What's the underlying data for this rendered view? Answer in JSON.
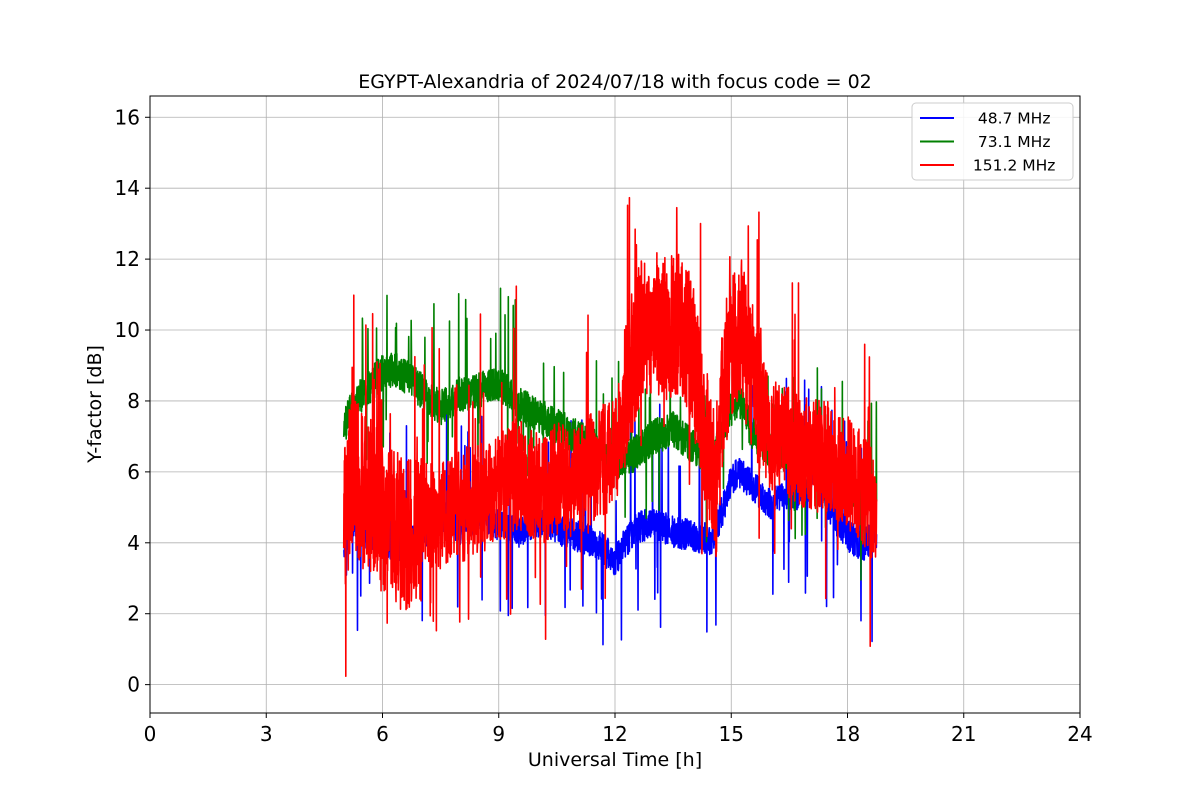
{
  "chart_data": {
    "type": "line",
    "title": "EGYPT-Alexandria of 2024/07/18 with focus code = 02",
    "xlabel": "Universal Time [h]",
    "ylabel": "Y-factor [dB]",
    "xlim": [
      0,
      24
    ],
    "ylim": [
      -0.8,
      16.6
    ],
    "xticks": [
      "0",
      "3",
      "6",
      "9",
      "12",
      "15",
      "18",
      "21",
      "24"
    ],
    "yticks": [
      "0",
      "2",
      "4",
      "6",
      "8",
      "10",
      "12",
      "14",
      "16"
    ],
    "grid": true,
    "legend_position": "top-right",
    "series": [
      {
        "name": "  48.7 MHz",
        "color": "#0000ff",
        "x": [
          5.0,
          5.2,
          5.5,
          5.8,
          6.0,
          6.3,
          6.6,
          7.0,
          7.5,
          8.0,
          8.5,
          9.0,
          9.5,
          10.0,
          10.5,
          11.0,
          11.5,
          12.0,
          12.5,
          13.0,
          13.5,
          14.0,
          14.5,
          14.8,
          15.0,
          15.2,
          15.5,
          16.0,
          16.5,
          17.0,
          17.2,
          17.5,
          18.0,
          18.4,
          18.75
        ],
        "values": [
          4.0,
          4.6,
          4.3,
          4.2,
          4.1,
          3.9,
          4.0,
          4.2,
          4.8,
          4.4,
          4.8,
          4.5,
          4.3,
          4.6,
          4.4,
          4.2,
          4.0,
          3.5,
          4.4,
          4.6,
          4.3,
          4.2,
          4.1,
          5.0,
          5.8,
          6.0,
          5.7,
          5.1,
          5.3,
          5.5,
          6.5,
          5.0,
          4.2,
          3.9,
          4.3
        ]
      },
      {
        "name": "  73.1 MHz",
        "color": "#008000",
        "x": [
          5.0,
          5.2,
          5.5,
          5.8,
          6.0,
          6.3,
          6.6,
          7.0,
          7.5,
          8.0,
          8.5,
          9.0,
          9.5,
          10.0,
          10.5,
          11.0,
          11.5,
          12.0,
          12.5,
          13.0,
          13.5,
          14.0,
          14.5,
          14.8,
          15.0,
          15.2,
          15.5,
          16.0,
          16.5,
          17.0,
          17.5,
          18.0,
          18.4,
          18.75
        ],
        "values": [
          7.2,
          7.8,
          8.2,
          8.6,
          8.8,
          8.9,
          8.7,
          8.3,
          7.8,
          8.2,
          8.3,
          8.5,
          7.9,
          7.6,
          7.3,
          7.0,
          6.7,
          6.3,
          6.5,
          7.0,
          7.2,
          6.7,
          6.3,
          7.2,
          7.8,
          8.1,
          7.2,
          6.6,
          6.5,
          6.6,
          6.2,
          5.6,
          5.2,
          5.5
        ]
      },
      {
        "name": " 151.2 MHz",
        "color": "#ff0000",
        "x": [
          5.0,
          5.2,
          5.5,
          5.8,
          6.0,
          6.3,
          6.6,
          7.0,
          7.5,
          8.0,
          8.5,
          9.0,
          9.5,
          10.0,
          10.5,
          11.0,
          11.5,
          12.0,
          12.3,
          12.6,
          13.0,
          13.3,
          13.6,
          14.0,
          14.3,
          14.6,
          14.8,
          15.0,
          15.2,
          15.5,
          16.0,
          16.5,
          17.0,
          17.5,
          18.0,
          18.4,
          18.75
        ],
        "values": [
          4.5,
          6.0,
          5.5,
          5.2,
          4.8,
          4.5,
          4.2,
          4.6,
          4.8,
          5.0,
          5.3,
          5.5,
          6.0,
          5.5,
          5.8,
          5.7,
          6.2,
          6.5,
          8.5,
          9.8,
          10.2,
          10.0,
          10.3,
          9.4,
          7.2,
          5.5,
          8.5,
          9.6,
          10.2,
          8.8,
          7.0,
          6.8,
          6.5,
          6.4,
          6.0,
          5.5,
          5.0
        ]
      }
    ]
  }
}
